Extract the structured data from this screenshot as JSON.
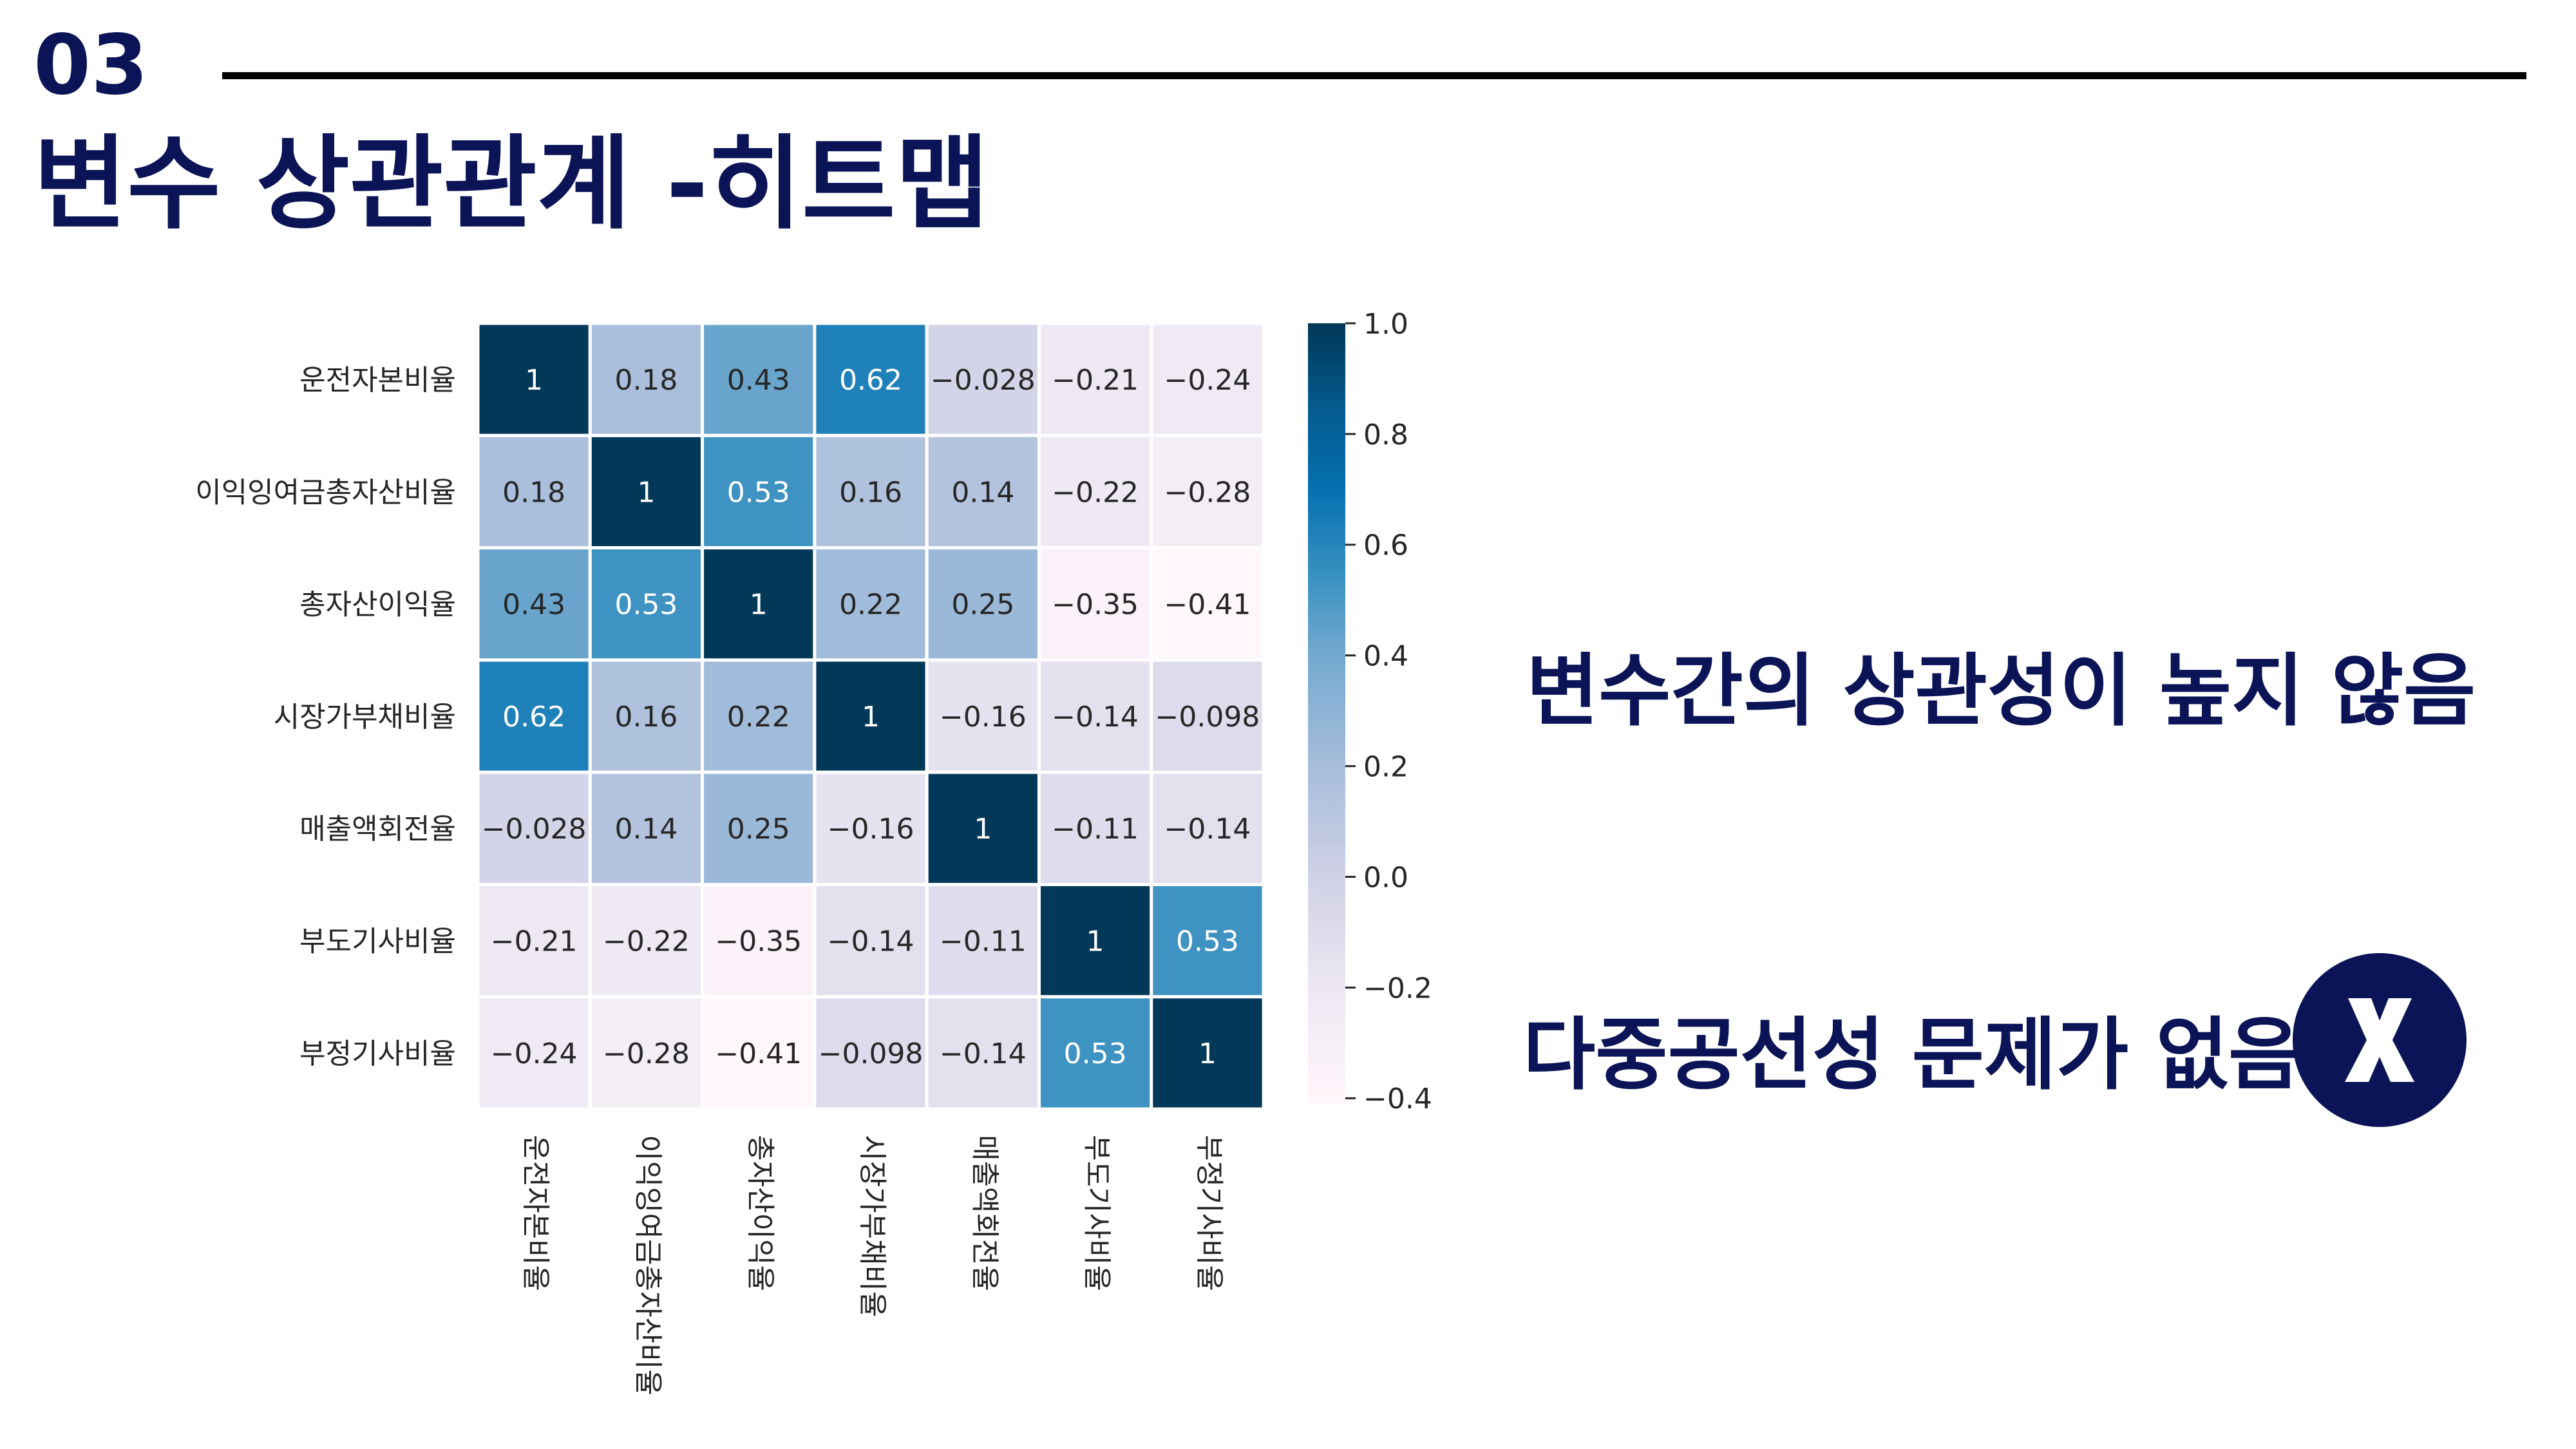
{
  "header": {
    "section_number": "03",
    "title": "변수 상관관계 -히트맵"
  },
  "conclusions": {
    "low_correlation": "변수간의 상관성이 높지 않음",
    "no_multicollinearity": "다중공선성 문제가 없음",
    "badge_icon": "x-mark-icon"
  },
  "colors": {
    "title_navy": "#0b1456",
    "rule": "#000000"
  },
  "chart_data": {
    "type": "heatmap",
    "title": "",
    "xlabel": "",
    "ylabel": "",
    "colormap": "PuBu",
    "categories": [
      "운전자본비율",
      "이익잉여금총자산비율",
      "총자산이익율",
      "시장가부채비율",
      "매출액회전율",
      "부도기사비율",
      "부정기사비율"
    ],
    "values": [
      [
        1,
        0.18,
        0.43,
        0.62,
        -0.028,
        -0.21,
        -0.24
      ],
      [
        0.18,
        1,
        0.53,
        0.16,
        0.14,
        -0.22,
        -0.28
      ],
      [
        0.43,
        0.53,
        1,
        0.22,
        0.25,
        -0.35,
        -0.41
      ],
      [
        0.62,
        0.16,
        0.22,
        1,
        -0.16,
        -0.14,
        -0.098
      ],
      [
        -0.028,
        0.14,
        0.25,
        -0.16,
        1,
        -0.11,
        -0.14
      ],
      [
        -0.21,
        -0.22,
        -0.35,
        -0.14,
        -0.11,
        1,
        0.53
      ],
      [
        -0.24,
        -0.28,
        -0.41,
        -0.098,
        -0.14,
        0.53,
        1
      ]
    ],
    "cell_labels": [
      [
        "1",
        "0.18",
        "0.43",
        "0.62",
        "−0.028",
        "−0.21",
        "−0.24"
      ],
      [
        "0.18",
        "1",
        "0.53",
        "0.16",
        "0.14",
        "−0.22",
        "−0.28"
      ],
      [
        "0.43",
        "0.53",
        "1",
        "0.22",
        "0.25",
        "−0.35",
        "−0.41"
      ],
      [
        "0.62",
        "0.16",
        "0.22",
        "1",
        "−0.16",
        "−0.14",
        "−0.098"
      ],
      [
        "−0.028",
        "0.14",
        "0.25",
        "−0.16",
        "1",
        "−0.11",
        "−0.14"
      ],
      [
        "−0.21",
        "−0.22",
        "−0.35",
        "−0.14",
        "−0.11",
        "1",
        "0.53"
      ],
      [
        "−0.24",
        "−0.28",
        "−0.41",
        "−0.098",
        "−0.14",
        "0.53",
        "1"
      ]
    ],
    "colorbar": {
      "range": [
        -0.41,
        1.0
      ],
      "ticks": [
        1.0,
        0.8,
        0.6,
        0.4,
        0.2,
        0.0,
        -0.2,
        -0.4
      ],
      "tick_labels": [
        "1.0",
        "0.8",
        "0.6",
        "0.4",
        "0.2",
        "0.0",
        "−0.2",
        "−0.4"
      ]
    },
    "colorscale": [
      {
        "v": -0.41,
        "c": "#fff7fb"
      },
      {
        "v": -0.2,
        "c": "#ece7f2"
      },
      {
        "v": 0.0,
        "c": "#d0d1e6"
      },
      {
        "v": 0.2,
        "c": "#a6bddb"
      },
      {
        "v": 0.4,
        "c": "#74a9cf"
      },
      {
        "v": 0.55,
        "c": "#3690c0"
      },
      {
        "v": 0.7,
        "c": "#0570b0"
      },
      {
        "v": 0.85,
        "c": "#045a8d"
      },
      {
        "v": 1.0,
        "c": "#023858"
      }
    ]
  }
}
